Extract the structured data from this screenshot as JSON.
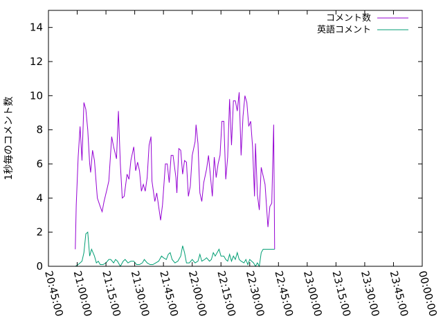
{
  "chart_data": {
    "type": "line",
    "xlabel": "",
    "ylabel": "1秒毎のコメント数",
    "xlim": [
      "20:45:00",
      "00:00:00"
    ],
    "ylim": [
      0,
      15
    ],
    "y_ticks": [
      0,
      2,
      4,
      6,
      8,
      10,
      12,
      14
    ],
    "x_ticks": [
      "20:45:00",
      "21:00:00",
      "21:15:00",
      "21:30:00",
      "21:45:00",
      "22:00:00",
      "22:15:00",
      "22:30:00",
      "22:45:00",
      "23:00:00",
      "23:15:00",
      "23:30:00",
      "23:45:00",
      "00:00:00"
    ],
    "grid": false,
    "legend_position": "top-right",
    "series": [
      {
        "name": "コメント数",
        "color": "#9400d3",
        "points": [
          [
            "20:59:00",
            1.0
          ],
          [
            "20:59:30",
            3.6
          ],
          [
            "21:00:30",
            6.4
          ],
          [
            "21:01:30",
            8.2
          ],
          [
            "21:02:30",
            6.2
          ],
          [
            "21:03:30",
            9.6
          ],
          [
            "21:04:30",
            9.2
          ],
          [
            "21:05:30",
            8.0
          ],
          [
            "21:06:30",
            6.0
          ],
          [
            "21:07:00",
            5.5
          ],
          [
            "21:08:00",
            6.8
          ],
          [
            "21:09:00",
            6.2
          ],
          [
            "21:10:30",
            4.0
          ],
          [
            "21:12:00",
            3.5
          ],
          [
            "21:13:00",
            3.2
          ],
          [
            "21:14:00",
            3.8
          ],
          [
            "21:15:30",
            4.5
          ],
          [
            "21:16:30",
            5.0
          ],
          [
            "21:18:00",
            7.6
          ],
          [
            "21:19:00",
            7.0
          ],
          [
            "21:20:30",
            6.3
          ],
          [
            "21:21:30",
            9.1
          ],
          [
            "21:22:30",
            6.0
          ],
          [
            "21:23:30",
            4.0
          ],
          [
            "21:24:30",
            4.1
          ],
          [
            "21:26:00",
            5.4
          ],
          [
            "21:27:00",
            5.1
          ],
          [
            "21:28:00",
            6.2
          ],
          [
            "21:29:30",
            7.0
          ],
          [
            "21:30:30",
            5.6
          ],
          [
            "21:31:30",
            6.1
          ],
          [
            "21:32:30",
            5.6
          ],
          [
            "21:33:30",
            4.4
          ],
          [
            "21:34:30",
            4.8
          ],
          [
            "21:35:30",
            4.4
          ],
          [
            "21:36:30",
            5.2
          ],
          [
            "21:37:30",
            7.1
          ],
          [
            "21:38:30",
            7.6
          ],
          [
            "21:39:00",
            5.0
          ],
          [
            "21:40:30",
            3.8
          ],
          [
            "21:41:30",
            4.3
          ],
          [
            "21:42:30",
            3.5
          ],
          [
            "21:43:30",
            2.7
          ],
          [
            "21:44:30",
            3.6
          ],
          [
            "21:46:00",
            6.0
          ],
          [
            "21:47:00",
            6.0
          ],
          [
            "21:48:00",
            4.9
          ],
          [
            "21:49:00",
            6.5
          ],
          [
            "21:50:00",
            6.5
          ],
          [
            "21:51:30",
            5.2
          ],
          [
            "21:52:00",
            4.3
          ],
          [
            "21:53:00",
            6.9
          ],
          [
            "21:54:00",
            6.8
          ],
          [
            "21:55:00",
            5.4
          ],
          [
            "21:56:00",
            6.2
          ],
          [
            "21:57:00",
            6.1
          ],
          [
            "21:58:00",
            4.1
          ],
          [
            "21:59:00",
            4.7
          ],
          [
            "22:00:00",
            6.5
          ],
          [
            "22:01:30",
            7.3
          ],
          [
            "22:02:00",
            8.3
          ],
          [
            "22:03:00",
            7.2
          ],
          [
            "22:04:00",
            4.3
          ],
          [
            "22:05:00",
            3.8
          ],
          [
            "22:06:00",
            4.9
          ],
          [
            "22:07:30",
            5.7
          ],
          [
            "22:08:30",
            6.5
          ],
          [
            "22:09:30",
            5.3
          ],
          [
            "22:10:30",
            4.1
          ],
          [
            "22:11:30",
            6.4
          ],
          [
            "22:12:30",
            5.2
          ],
          [
            "22:13:30",
            6.0
          ],
          [
            "22:14:30",
            6.5
          ],
          [
            "22:15:30",
            8.5
          ],
          [
            "22:16:30",
            8.5
          ],
          [
            "22:17:30",
            5.1
          ],
          [
            "22:18:30",
            6.4
          ],
          [
            "22:19:30",
            9.8
          ],
          [
            "22:20:30",
            7.1
          ],
          [
            "22:21:30",
            9.7
          ],
          [
            "22:22:30",
            9.7
          ],
          [
            "22:23:30",
            9.1
          ],
          [
            "22:24:30",
            10.2
          ],
          [
            "22:25:30",
            6.5
          ],
          [
            "22:26:30",
            8.8
          ],
          [
            "22:27:30",
            10.0
          ],
          [
            "22:28:30",
            9.6
          ],
          [
            "22:29:30",
            8.2
          ],
          [
            "22:30:30",
            8.5
          ],
          [
            "22:31:30",
            7.0
          ],
          [
            "22:32:30",
            4.1
          ],
          [
            "22:33:00",
            7.2
          ],
          [
            "22:34:00",
            4.2
          ],
          [
            "22:35:00",
            3.3
          ],
          [
            "22:36:00",
            5.8
          ],
          [
            "22:37:00",
            5.3
          ],
          [
            "22:38:00",
            4.8
          ],
          [
            "22:39:30",
            2.3
          ],
          [
            "22:40:30",
            3.5
          ],
          [
            "22:41:30",
            3.7
          ],
          [
            "22:42:30",
            8.3
          ],
          [
            "22:43:00",
            1.0
          ]
        ]
      },
      {
        "name": "英語コメント",
        "color": "#009e73",
        "points": [
          [
            "20:59:00",
            0.0
          ],
          [
            "21:00:30",
            0.1
          ],
          [
            "21:01:30",
            0.2
          ],
          [
            "21:02:30",
            0.3
          ],
          [
            "21:03:30",
            0.8
          ],
          [
            "21:04:30",
            1.9
          ],
          [
            "21:05:30",
            2.0
          ],
          [
            "21:06:30",
            0.6
          ],
          [
            "21:07:30",
            1.0
          ],
          [
            "21:09:00",
            0.6
          ],
          [
            "21:10:00",
            0.2
          ],
          [
            "21:11:00",
            0.3
          ],
          [
            "21:12:00",
            0.1
          ],
          [
            "21:13:30",
            0.1
          ],
          [
            "21:15:00",
            0.2
          ],
          [
            "21:16:30",
            0.4
          ],
          [
            "21:17:30",
            0.4
          ],
          [
            "21:19:00",
            0.2
          ],
          [
            "21:20:00",
            0.4
          ],
          [
            "21:21:00",
            0.3
          ],
          [
            "21:22:30",
            0.0
          ],
          [
            "21:24:00",
            0.3
          ],
          [
            "21:25:00",
            0.4
          ],
          [
            "21:26:30",
            0.2
          ],
          [
            "21:28:00",
            0.3
          ],
          [
            "21:29:30",
            0.3
          ],
          [
            "21:31:00",
            0.1
          ],
          [
            "21:32:30",
            0.1
          ],
          [
            "21:34:00",
            0.2
          ],
          [
            "21:35:00",
            0.4
          ],
          [
            "21:36:30",
            0.2
          ],
          [
            "21:38:00",
            0.1
          ],
          [
            "21:39:30",
            0.1
          ],
          [
            "21:41:00",
            0.2
          ],
          [
            "21:42:30",
            0.3
          ],
          [
            "21:44:00",
            0.6
          ],
          [
            "21:45:00",
            0.5
          ],
          [
            "21:46:30",
            0.4
          ],
          [
            "21:47:30",
            0.7
          ],
          [
            "21:48:30",
            0.8
          ],
          [
            "21:49:30",
            0.4
          ],
          [
            "21:51:00",
            0.2
          ],
          [
            "21:52:30",
            0.3
          ],
          [
            "21:54:00",
            0.6
          ],
          [
            "21:55:00",
            1.2
          ],
          [
            "21:56:00",
            0.8
          ],
          [
            "21:57:00",
            0.2
          ],
          [
            "21:58:30",
            0.2
          ],
          [
            "22:00:00",
            0.4
          ],
          [
            "22:01:30",
            0.2
          ],
          [
            "22:03:00",
            0.3
          ],
          [
            "22:04:00",
            0.7
          ],
          [
            "22:05:00",
            0.3
          ],
          [
            "22:06:30",
            0.4
          ],
          [
            "22:07:30",
            0.5
          ],
          [
            "22:09:00",
            0.3
          ],
          [
            "22:10:00",
            0.4
          ],
          [
            "22:11:00",
            0.8
          ],
          [
            "22:12:00",
            0.6
          ],
          [
            "22:13:00",
            0.8
          ],
          [
            "22:14:00",
            1.0
          ],
          [
            "22:15:00",
            0.6
          ],
          [
            "22:16:30",
            0.6
          ],
          [
            "22:17:30",
            0.4
          ],
          [
            "22:18:30",
            0.3
          ],
          [
            "22:19:30",
            0.7
          ],
          [
            "22:20:30",
            0.3
          ],
          [
            "22:21:30",
            0.6
          ],
          [
            "22:22:30",
            0.4
          ],
          [
            "22:23:30",
            0.8
          ],
          [
            "22:24:30",
            0.4
          ],
          [
            "22:25:30",
            0.3
          ],
          [
            "22:27:00",
            0.2
          ],
          [
            "22:28:00",
            0.4
          ],
          [
            "22:29:00",
            0.1
          ],
          [
            "22:30:00",
            0.4
          ],
          [
            "22:31:00",
            0.3
          ],
          [
            "22:32:00",
            0.2
          ],
          [
            "22:33:00",
            0.0
          ],
          [
            "22:34:00",
            0.2
          ],
          [
            "22:35:00",
            0.0
          ],
          [
            "22:36:00",
            0.8
          ],
          [
            "22:37:00",
            1.0
          ],
          [
            "22:38:00",
            1.0
          ],
          [
            "22:43:00",
            1.0
          ]
        ]
      }
    ]
  }
}
